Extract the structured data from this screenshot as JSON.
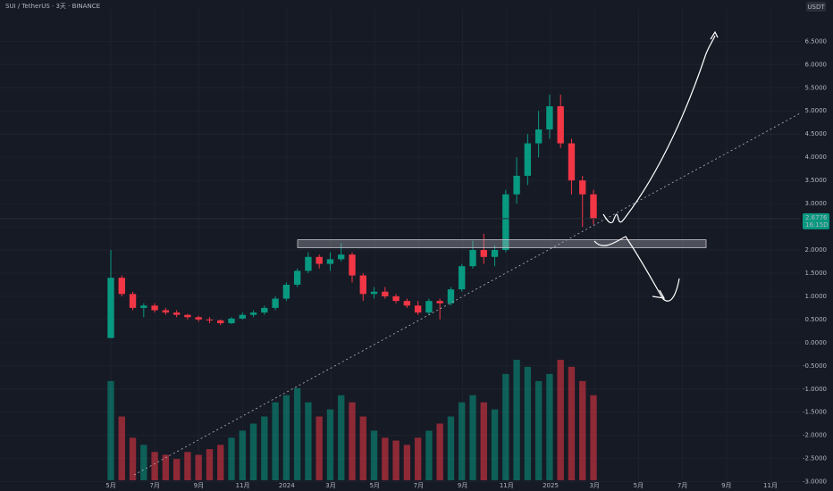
{
  "chart_data": {
    "type": "candlestick",
    "title": "SUI / TetherUS · 3天 · BINANCE",
    "currency": "USDT",
    "categories": [
      "5月",
      "7月",
      "9月",
      "11月",
      "2024",
      "3月",
      "5月",
      "7月",
      "9月",
      "11月",
      "2025",
      "3月",
      "5月",
      "7月",
      "9月",
      "11月"
    ],
    "open": [
      0.1,
      1.4,
      1.05,
      0.75,
      0.8,
      0.7,
      0.65,
      0.6,
      0.55,
      0.5,
      0.48,
      0.42,
      0.52,
      0.6,
      0.65,
      0.75,
      0.95,
      1.25,
      1.55,
      1.85,
      1.7,
      1.8,
      1.9,
      1.45,
      1.05,
      1.1,
      1.0,
      0.9,
      0.8,
      0.65,
      0.9,
      0.85,
      1.15,
      1.65,
      2.0,
      1.85,
      2.0,
      3.2,
      3.6,
      4.3,
      4.6,
      5.1,
      4.3,
      3.5,
      3.2
    ],
    "high": [
      2.0,
      1.45,
      1.1,
      0.85,
      0.85,
      0.75,
      0.7,
      0.62,
      0.58,
      0.55,
      0.5,
      0.55,
      0.65,
      0.7,
      0.8,
      1.0,
      1.3,
      1.6,
      1.95,
      1.9,
      1.95,
      2.15,
      1.95,
      1.5,
      1.2,
      1.2,
      1.05,
      0.95,
      0.9,
      0.95,
      0.95,
      1.2,
      1.7,
      2.2,
      2.35,
      2.1,
      3.3,
      4.0,
      4.5,
      5.0,
      5.35,
      5.35,
      4.4,
      3.6,
      3.3
    ],
    "low": [
      0.1,
      1.0,
      0.7,
      0.55,
      0.65,
      0.6,
      0.55,
      0.5,
      0.45,
      0.42,
      0.38,
      0.4,
      0.5,
      0.55,
      0.6,
      0.7,
      0.9,
      1.2,
      1.5,
      1.6,
      1.55,
      1.75,
      1.3,
      0.9,
      0.95,
      0.95,
      0.85,
      0.75,
      0.6,
      0.6,
      0.5,
      0.8,
      1.1,
      1.6,
      1.7,
      1.65,
      1.95,
      3.0,
      3.4,
      4.0,
      4.4,
      4.2,
      3.2,
      2.5,
      2.55
    ],
    "close": [
      1.4,
      1.05,
      0.75,
      0.8,
      0.7,
      0.65,
      0.6,
      0.55,
      0.5,
      0.48,
      0.42,
      0.52,
      0.6,
      0.65,
      0.75,
      0.95,
      1.25,
      1.55,
      1.85,
      1.7,
      1.8,
      1.9,
      1.45,
      1.05,
      1.1,
      1.0,
      0.9,
      0.8,
      0.65,
      0.9,
      0.85,
      1.15,
      1.65,
      2.0,
      1.85,
      2.0,
      3.2,
      3.6,
      4.3,
      4.6,
      5.1,
      4.3,
      3.5,
      3.2,
      2.68
    ],
    "volume": [
      70,
      45,
      30,
      25,
      20,
      18,
      15,
      20,
      18,
      22,
      25,
      30,
      35,
      40,
      45,
      55,
      60,
      65,
      55,
      45,
      50,
      60,
      55,
      45,
      35,
      30,
      28,
      25,
      30,
      35,
      40,
      45,
      55,
      60,
      55,
      50,
      75,
      85,
      80,
      70,
      75,
      85,
      80,
      70,
      60
    ],
    "up_color": "#089981",
    "down_color": "#f23645",
    "zone": [
      2.05,
      2.22
    ],
    "last_price": {
      "value": 2.6776,
      "label": "2.6776"
    },
    "countdown": "16:15D",
    "ylim": [
      -3.2,
      7.2
    ],
    "yticks": [
      {
        "value": -3,
        "label": "-3.0000"
      },
      {
        "value": -2.5,
        "label": "-2.5000"
      },
      {
        "value": -2,
        "label": "-2.0000"
      },
      {
        "value": -1.5,
        "label": "-1.5000"
      },
      {
        "value": -1,
        "label": "-1.0000"
      },
      {
        "value": -0.5,
        "label": "-0.5000"
      },
      {
        "value": 0,
        "label": "0.0000"
      },
      {
        "value": 0.5,
        "label": "0.5000"
      },
      {
        "value": 1,
        "label": "1.0000"
      },
      {
        "value": 1.5,
        "label": "1.5000"
      },
      {
        "value": 2,
        "label": "2.0000"
      },
      {
        "value": 2.5,
        "label": "2.5000"
      },
      {
        "value": 3,
        "label": "3.0000"
      },
      {
        "value": 3.5,
        "label": "3.5000"
      },
      {
        "value": 4,
        "label": "4.0000"
      },
      {
        "value": 4.5,
        "label": "4.5000"
      },
      {
        "value": 5,
        "label": "5.0000"
      },
      {
        "value": 5.5,
        "label": "5.5000"
      },
      {
        "value": 6,
        "label": "6.0000"
      },
      {
        "value": 6.5,
        "label": "6.5000"
      }
    ],
    "grid": true
  }
}
